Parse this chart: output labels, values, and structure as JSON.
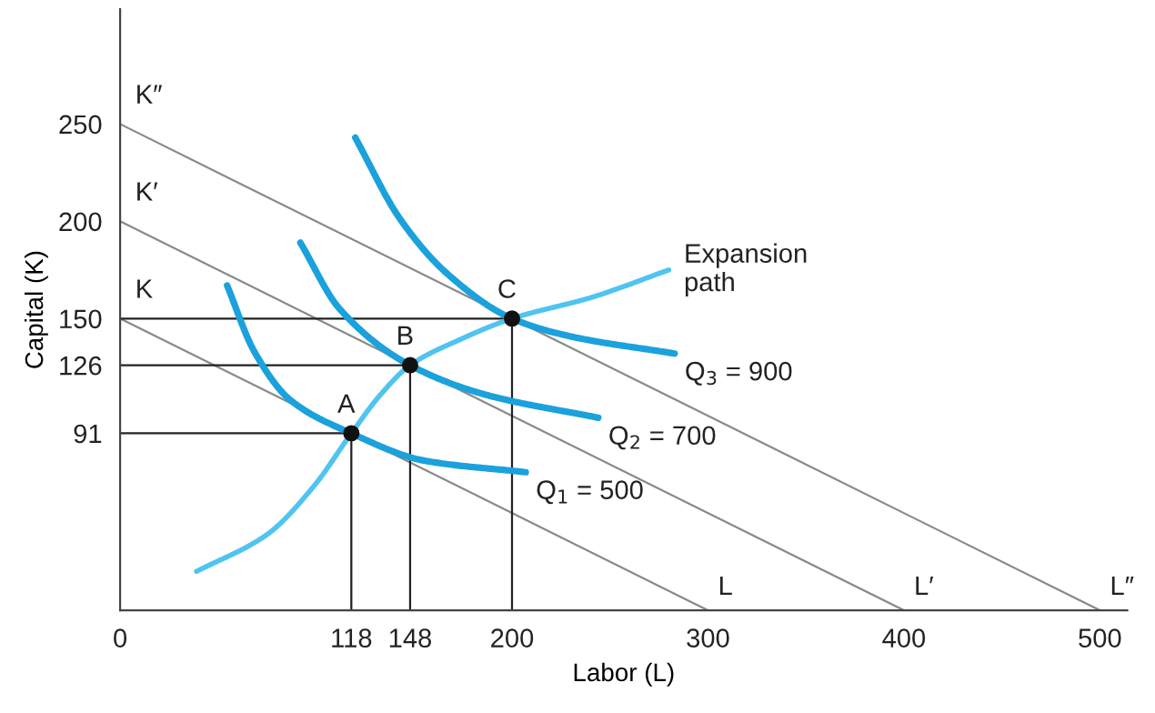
{
  "chart_data": {
    "type": "line",
    "xlabel": "Labor (L)",
    "ylabel": "Capital (K)",
    "xlim": [
      0,
      514
    ],
    "ylim": [
      0,
      309
    ],
    "xticks": [
      0,
      118,
      148,
      200,
      300,
      400,
      500
    ],
    "yticks": [
      91,
      126,
      150,
      200,
      250
    ],
    "grid": false,
    "legend": false,
    "marker": "none",
    "series": [
      {
        "color": "#8a8a8a",
        "x": [
          0,
          300
        ],
        "values": [
          150,
          0
        ]
      },
      {
        "color": "#8a8a8a",
        "x": [
          0,
          400
        ],
        "values": [
          200,
          0
        ]
      },
      {
        "color": "#8a8a8a",
        "x": [
          0,
          500
        ],
        "values": [
          250,
          0
        ]
      },
      {
        "color": "#222222",
        "x": [
          0,
          118,
          118
        ],
        "values": [
          91,
          91,
          0
        ]
      },
      {
        "color": "#222222",
        "x": [
          0,
          148,
          148
        ],
        "values": [
          126,
          126,
          0
        ]
      },
      {
        "color": "#222222",
        "x": [
          0,
          200,
          200
        ],
        "values": [
          150,
          150,
          0
        ]
      },
      {
        "color": "#1ba1dc",
        "x": [
          54.6,
          68.5,
          87,
          118,
          155,
          207
        ],
        "values": [
          167,
          133,
          108,
          91,
          77,
          71
        ]
      },
      {
        "color": "#1ba1dc",
        "x": [
          92,
          112,
          148,
          186,
          244
        ],
        "values": [
          189,
          155,
          126,
          111,
          99
        ]
      },
      {
        "color": "#1ba1dc",
        "x": [
          120,
          143,
          167,
          200,
          229,
          283
        ],
        "values": [
          243,
          201,
          173,
          150,
          141,
          132
        ]
      },
      {
        "color": "#50c4f0",
        "x": [
          39,
          75,
          99,
          118,
          133,
          148,
          173,
          200,
          241,
          280
        ],
        "values": [
          20,
          39,
          64,
          91,
          111,
          126,
          139,
          150,
          161,
          175
        ]
      },
      {
        "type": "scatter",
        "marker": "circle",
        "color": "#111111",
        "x": [
          118,
          148,
          200
        ],
        "values": [
          91,
          126,
          150
        ]
      }
    ],
    "annotations": [
      {
        "text": "K",
        "x": 0,
        "y": 150
      },
      {
        "text": "K′",
        "x": 0,
        "y": 200
      },
      {
        "text": "K″",
        "x": 0,
        "y": 250
      },
      {
        "text": "L",
        "x": 300,
        "y": 0
      },
      {
        "text": "L′",
        "x": 400,
        "y": 0
      },
      {
        "text": "L″",
        "x": 500,
        "y": 0
      },
      {
        "text": "A",
        "x": 118,
        "y": 91
      },
      {
        "text": "B",
        "x": 148,
        "y": 126
      },
      {
        "text": "C",
        "x": 200,
        "y": 150
      },
      {
        "text": "Expansion\npath",
        "x": 280,
        "y": 175
      },
      {
        "text": "Q$_{3}$ = 900",
        "x": 283,
        "y": 132
      },
      {
        "text": "Q$_{2}$ = 700",
        "x": 244,
        "y": 99
      },
      {
        "text": "Q$_{1}$ = 500",
        "x": 207,
        "y": 71
      }
    ]
  }
}
